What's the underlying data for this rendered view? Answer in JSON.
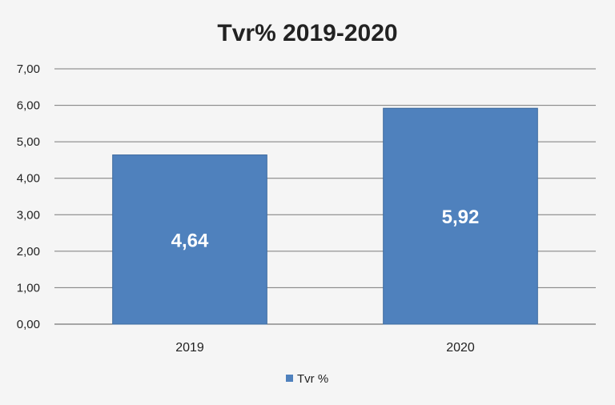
{
  "chart_data": {
    "type": "bar",
    "title": "Tvr% 2019-2020",
    "categories": [
      "2019",
      "2020"
    ],
    "series": [
      {
        "name": "Tvr %",
        "values": [
          4.64,
          5.92
        ],
        "color": "#4f81bd"
      }
    ],
    "data_labels": [
      "4,64",
      "5,92"
    ],
    "ylim": [
      0,
      7
    ],
    "yticks": [
      "0,00",
      "1,00",
      "2,00",
      "3,00",
      "4,00",
      "5,00",
      "6,00",
      "7,00"
    ],
    "grid": true,
    "legend_position": "bottom"
  }
}
